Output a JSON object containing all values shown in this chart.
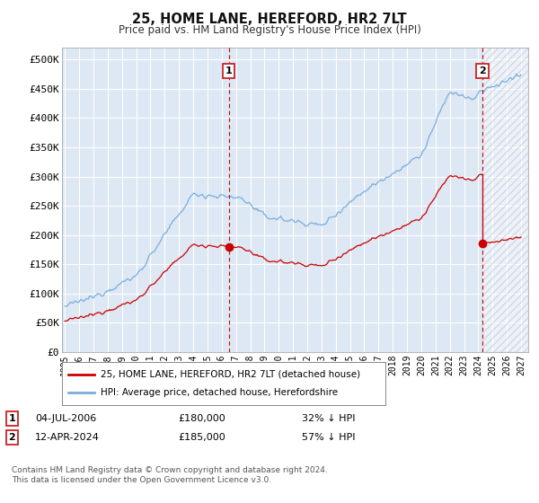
{
  "title": "25, HOME LANE, HEREFORD, HR2 7LT",
  "subtitle": "Price paid vs. HM Land Registry's House Price Index (HPI)",
  "legend_line1": "25, HOME LANE, HEREFORD, HR2 7LT (detached house)",
  "legend_line2": "HPI: Average price, detached house, Herefordshire",
  "ann1_label": "1",
  "ann1_date": "04-JUL-2006",
  "ann1_price": "£180,000",
  "ann1_hpi": "32% ↓ HPI",
  "ann1_x": 2006.5,
  "ann1_y": 180000,
  "ann2_label": "2",
  "ann2_date": "12-APR-2024",
  "ann2_price": "£185,000",
  "ann2_hpi": "57% ↓ HPI",
  "ann2_x": 2024.28,
  "ann2_y": 185000,
  "footer": "Contains HM Land Registry data © Crown copyright and database right 2024.\nThis data is licensed under the Open Government Licence v3.0.",
  "ylim": [
    0,
    520000
  ],
  "xlim": [
    1994.8,
    2027.5
  ],
  "yticks": [
    0,
    50000,
    100000,
    150000,
    200000,
    250000,
    300000,
    350000,
    400000,
    450000,
    500000
  ],
  "ytick_labels": [
    "£0",
    "£50K",
    "£100K",
    "£150K",
    "£200K",
    "£250K",
    "£300K",
    "£350K",
    "£400K",
    "£450K",
    "£500K"
  ],
  "xtick_years": [
    1995,
    1996,
    1997,
    1998,
    1999,
    2000,
    2001,
    2002,
    2003,
    2004,
    2005,
    2006,
    2007,
    2008,
    2009,
    2010,
    2011,
    2012,
    2013,
    2014,
    2015,
    2016,
    2017,
    2018,
    2019,
    2020,
    2021,
    2022,
    2023,
    2024,
    2025,
    2026,
    2027
  ],
  "hpi_color": "#7aaddc",
  "price_color": "#cc0000",
  "grid_color": "#cccccc",
  "bg_color": "#dde8f4",
  "plot_bg": "#dde8f4"
}
